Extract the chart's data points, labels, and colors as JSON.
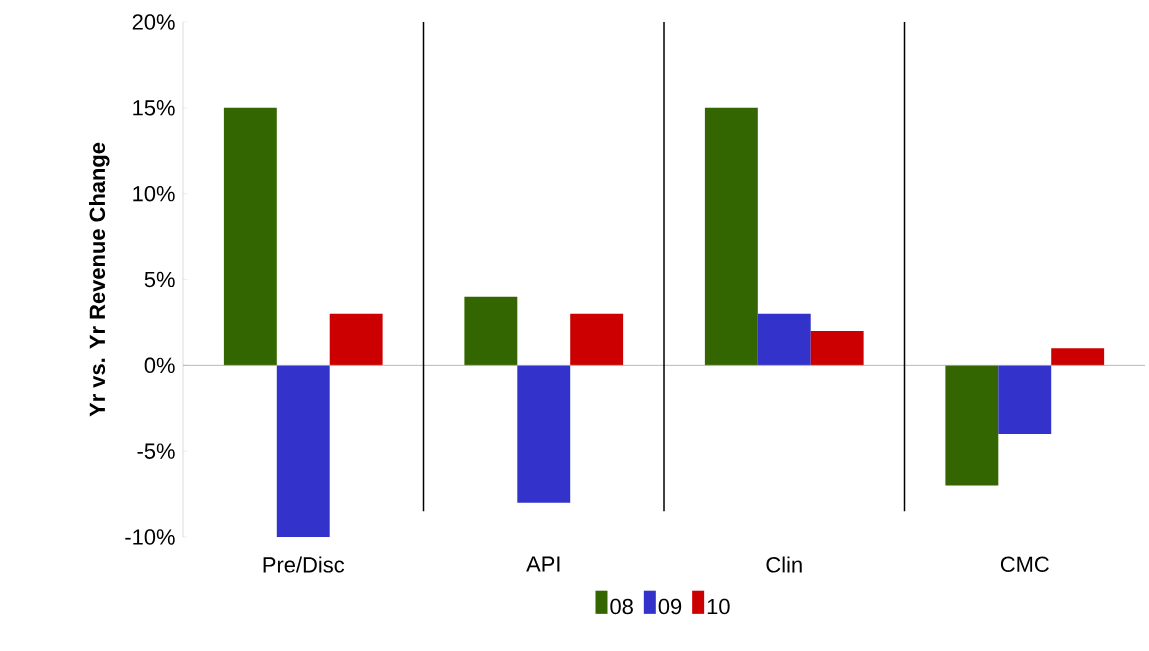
{
  "chart_data": {
    "type": "bar",
    "ylabel": "Yr vs. Yr Revenue Change",
    "categories": [
      "Pre/Disc",
      "API",
      "Clin",
      "CMC"
    ],
    "series": [
      {
        "name": "08",
        "color": "#336600",
        "values": [
          15,
          4,
          15,
          -7
        ]
      },
      {
        "name": "09",
        "color": "#3333cc",
        "values": [
          -10,
          -8,
          3,
          -4
        ]
      },
      {
        "name": "10",
        "color": "#cc0000",
        "values": [
          3,
          3,
          2,
          1
        ]
      }
    ],
    "ylim": [
      -10,
      20
    ],
    "yticks": [
      {
        "value": -10,
        "label": "-10%"
      },
      {
        "value": -5,
        "label": "-5%"
      },
      {
        "value": 0,
        "label": "0%"
      },
      {
        "value": 5,
        "label": "5%"
      },
      {
        "value": 10,
        "label": "10%"
      },
      {
        "value": 15,
        "label": "15%"
      },
      {
        "value": 20,
        "label": "20%"
      }
    ],
    "grid": false,
    "legend": "bottom"
  }
}
